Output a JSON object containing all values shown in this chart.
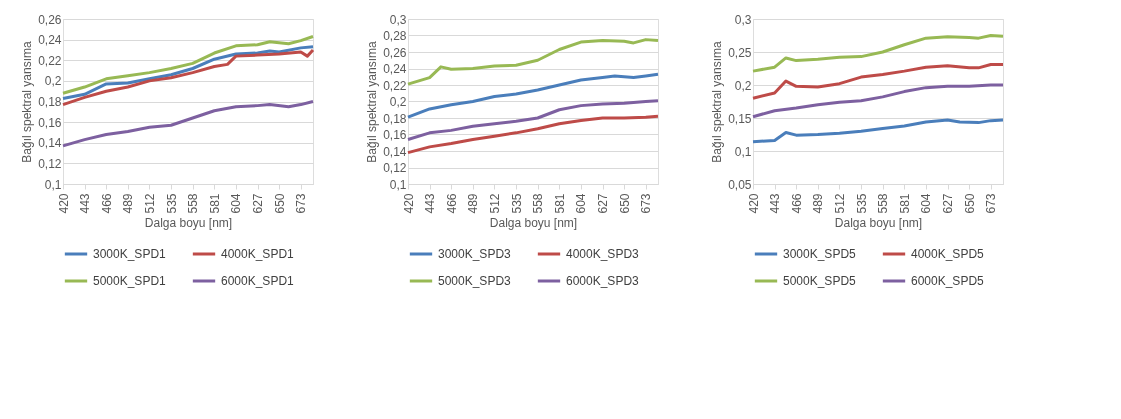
{
  "chart_data": [
    {
      "type": "line",
      "xlabel": "Dalga boyu [nm]",
      "ylabel": "Bağıl spektral yansıma",
      "xlim": [
        420,
        686
      ],
      "xticks": [
        420,
        443,
        466,
        489,
        512,
        535,
        558,
        581,
        604,
        627,
        650,
        673
      ],
      "ylim": [
        0.1,
        0.26
      ],
      "yticks": [
        {
          "value": 0.1,
          "label": "0,1"
        },
        {
          "value": 0.12,
          "label": "0,12"
        },
        {
          "value": 0.14,
          "label": "0,14"
        },
        {
          "value": 0.16,
          "label": "0,16"
        },
        {
          "value": 0.18,
          "label": "0,18"
        },
        {
          "value": 0.2,
          "label": "0,2"
        },
        {
          "value": 0.22,
          "label": "0,22"
        },
        {
          "value": 0.24,
          "label": "0,24"
        },
        {
          "value": 0.26,
          "label": "0,26"
        }
      ],
      "grid": "y",
      "legend": "bottom",
      "line_style": "solid",
      "marker": "none",
      "series": [
        {
          "name": "3000K_SPD1",
          "color": "#4a7ebb",
          "x": [
            420,
            443,
            466,
            489,
            512,
            535,
            558,
            581,
            604,
            627,
            640,
            650,
            673,
            686
          ],
          "values": [
            0.183,
            0.187,
            0.197,
            0.198,
            0.202,
            0.206,
            0.212,
            0.221,
            0.226,
            0.227,
            0.229,
            0.228,
            0.232,
            0.233
          ]
        },
        {
          "name": "4000K_SPD1",
          "color": "#be4b48",
          "x": [
            420,
            443,
            466,
            489,
            512,
            535,
            558,
            581,
            595,
            604,
            627,
            650,
            673,
            680,
            686
          ],
          "values": [
            0.177,
            0.184,
            0.19,
            0.194,
            0.2,
            0.203,
            0.208,
            0.214,
            0.216,
            0.224,
            0.225,
            0.226,
            0.228,
            0.224,
            0.23
          ]
        },
        {
          "name": "5000K_SPD1",
          "color": "#98b954",
          "x": [
            420,
            443,
            466,
            489,
            512,
            535,
            558,
            581,
            604,
            627,
            640,
            660,
            673,
            686
          ],
          "values": [
            0.188,
            0.194,
            0.202,
            0.205,
            0.208,
            0.212,
            0.217,
            0.227,
            0.234,
            0.235,
            0.238,
            0.236,
            0.239,
            0.243
          ]
        },
        {
          "name": "6000K_SPD1",
          "color": "#7d60a0",
          "x": [
            420,
            443,
            466,
            489,
            512,
            535,
            558,
            581,
            604,
            627,
            640,
            660,
            673,
            686
          ],
          "values": [
            0.137,
            0.143,
            0.148,
            0.151,
            0.155,
            0.157,
            0.164,
            0.171,
            0.175,
            0.176,
            0.177,
            0.175,
            0.177,
            0.18
          ]
        }
      ]
    },
    {
      "type": "line",
      "xlabel": "Dalga boyu [nm]",
      "ylabel": "Bağıl spektral yansıma",
      "xlim": [
        420,
        686
      ],
      "xticks": [
        420,
        443,
        466,
        489,
        512,
        535,
        558,
        581,
        604,
        627,
        650,
        673
      ],
      "ylim": [
        0.1,
        0.3
      ],
      "yticks": [
        {
          "value": 0.1,
          "label": "0,1"
        },
        {
          "value": 0.12,
          "label": "0,12"
        },
        {
          "value": 0.14,
          "label": "0,14"
        },
        {
          "value": 0.16,
          "label": "0,16"
        },
        {
          "value": 0.18,
          "label": "0,18"
        },
        {
          "value": 0.2,
          "label": "0,2"
        },
        {
          "value": 0.22,
          "label": "0,22"
        },
        {
          "value": 0.24,
          "label": "0,24"
        },
        {
          "value": 0.26,
          "label": "0,26"
        },
        {
          "value": 0.28,
          "label": "0,28"
        },
        {
          "value": 0.3,
          "label": "0,3"
        }
      ],
      "grid": "y",
      "legend": "bottom",
      "line_style": "solid",
      "marker": "none",
      "series": [
        {
          "name": "3000K_SPD3",
          "color": "#4a7ebb",
          "x": [
            420,
            443,
            466,
            489,
            512,
            535,
            558,
            581,
            604,
            627,
            640,
            660,
            673,
            686
          ],
          "values": [
            0.181,
            0.191,
            0.196,
            0.2,
            0.206,
            0.209,
            0.214,
            0.22,
            0.226,
            0.229,
            0.231,
            0.229,
            0.231,
            0.233
          ]
        },
        {
          "name": "4000K_SPD3",
          "color": "#be4b48",
          "x": [
            420,
            443,
            466,
            489,
            512,
            535,
            558,
            581,
            604,
            627,
            650,
            673,
            686
          ],
          "values": [
            0.138,
            0.145,
            0.149,
            0.154,
            0.158,
            0.162,
            0.167,
            0.173,
            0.177,
            0.18,
            0.18,
            0.181,
            0.182
          ]
        },
        {
          "name": "5000K_SPD3",
          "color": "#98b954",
          "x": [
            420,
            443,
            455,
            466,
            489,
            512,
            535,
            558,
            581,
            604,
            627,
            650,
            660,
            673,
            686
          ],
          "values": [
            0.221,
            0.229,
            0.242,
            0.239,
            0.24,
            0.243,
            0.244,
            0.25,
            0.263,
            0.272,
            0.274,
            0.273,
            0.271,
            0.275,
            0.274
          ]
        },
        {
          "name": "6000K_SPD3",
          "color": "#7d60a0",
          "x": [
            420,
            443,
            466,
            489,
            512,
            535,
            558,
            581,
            604,
            627,
            650,
            673,
            686
          ],
          "values": [
            0.154,
            0.162,
            0.165,
            0.17,
            0.173,
            0.176,
            0.18,
            0.19,
            0.195,
            0.197,
            0.198,
            0.2,
            0.201
          ]
        }
      ]
    },
    {
      "type": "line",
      "xlabel": "Dalga boyu [nm]",
      "ylabel": "Bağıl spektral yansıma",
      "xlim": [
        420,
        686
      ],
      "xticks": [
        420,
        443,
        466,
        489,
        512,
        535,
        558,
        581,
        604,
        627,
        650,
        673
      ],
      "ylim": [
        0.05,
        0.3
      ],
      "yticks": [
        {
          "value": 0.05,
          "label": "0,05"
        },
        {
          "value": 0.1,
          "label": "0,1"
        },
        {
          "value": 0.15,
          "label": "0,15"
        },
        {
          "value": 0.2,
          "label": "0,2"
        },
        {
          "value": 0.25,
          "label": "0,25"
        },
        {
          "value": 0.3,
          "label": "0,3"
        }
      ],
      "grid": "y",
      "legend": "bottom",
      "line_style": "solid",
      "marker": "none",
      "series": [
        {
          "name": "3000K_SPD5",
          "color": "#4a7ebb",
          "x": [
            420,
            443,
            455,
            466,
            489,
            512,
            535,
            558,
            581,
            604,
            627,
            640,
            660,
            673,
            686
          ],
          "values": [
            0.114,
            0.116,
            0.128,
            0.124,
            0.125,
            0.127,
            0.13,
            0.134,
            0.138,
            0.144,
            0.147,
            0.144,
            0.143,
            0.146,
            0.147
          ]
        },
        {
          "name": "4000K_SPD5",
          "color": "#be4b48",
          "x": [
            420,
            443,
            455,
            466,
            489,
            512,
            535,
            558,
            581,
            604,
            627,
            650,
            660,
            673,
            686
          ],
          "values": [
            0.18,
            0.188,
            0.206,
            0.198,
            0.197,
            0.202,
            0.212,
            0.216,
            0.221,
            0.227,
            0.229,
            0.226,
            0.226,
            0.231,
            0.231
          ]
        },
        {
          "name": "5000K_SPD5",
          "color": "#98b954",
          "x": [
            420,
            443,
            455,
            466,
            489,
            512,
            535,
            558,
            581,
            604,
            627,
            650,
            660,
            673,
            686
          ],
          "values": [
            0.221,
            0.227,
            0.241,
            0.237,
            0.239,
            0.242,
            0.243,
            0.25,
            0.261,
            0.271,
            0.273,
            0.272,
            0.271,
            0.275,
            0.274
          ]
        },
        {
          "name": "6000K_SPD5",
          "color": "#7d60a0",
          "x": [
            420,
            443,
            466,
            489,
            512,
            535,
            558,
            581,
            604,
            627,
            650,
            673,
            686
          ],
          "values": [
            0.152,
            0.161,
            0.165,
            0.17,
            0.174,
            0.176,
            0.182,
            0.19,
            0.196,
            0.198,
            0.198,
            0.2,
            0.2
          ]
        }
      ]
    }
  ]
}
